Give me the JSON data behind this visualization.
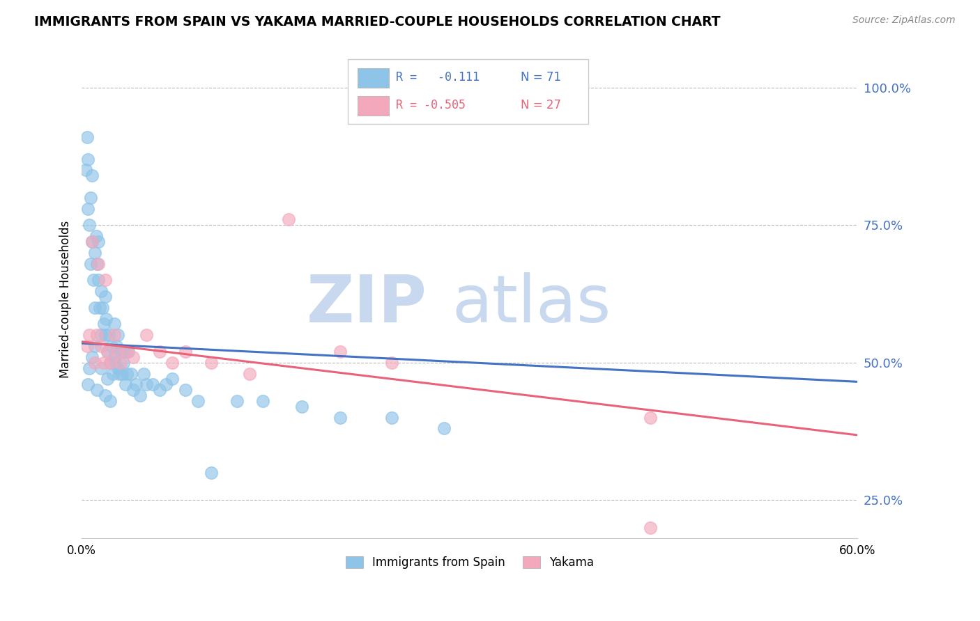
{
  "title": "IMMIGRANTS FROM SPAIN VS YAKAMA MARRIED-COUPLE HOUSEHOLDS CORRELATION CHART",
  "source": "Source: ZipAtlas.com",
  "ylabel": "Married-couple Households",
  "ytick_labels": [
    "25.0%",
    "50.0%",
    "75.0%",
    "100.0%"
  ],
  "ytick_values": [
    0.25,
    0.5,
    0.75,
    1.0
  ],
  "xlim": [
    0.0,
    0.6
  ],
  "ylim": [
    0.18,
    1.05
  ],
  "legend_label1": "Immigrants from Spain",
  "legend_label2": "Yakama",
  "blue_color": "#8ec4e8",
  "pink_color": "#f4a8bc",
  "blue_line_color": "#4472c4",
  "pink_line_color": "#e8637a",
  "blue_dots_x": [
    0.003,
    0.004,
    0.005,
    0.005,
    0.006,
    0.007,
    0.007,
    0.008,
    0.008,
    0.009,
    0.01,
    0.01,
    0.011,
    0.012,
    0.013,
    0.013,
    0.014,
    0.015,
    0.015,
    0.016,
    0.017,
    0.018,
    0.018,
    0.019,
    0.02,
    0.021,
    0.022,
    0.023,
    0.024,
    0.025,
    0.025,
    0.026,
    0.027,
    0.028,
    0.028,
    0.029,
    0.03,
    0.031,
    0.032,
    0.033,
    0.034,
    0.035,
    0.036,
    0.038,
    0.04,
    0.042,
    0.045,
    0.048,
    0.05,
    0.055,
    0.06,
    0.065,
    0.07,
    0.08,
    0.09,
    0.1,
    0.12,
    0.14,
    0.17,
    0.2,
    0.24,
    0.28,
    0.005,
    0.006,
    0.008,
    0.01,
    0.012,
    0.015,
    0.018,
    0.02,
    0.022
  ],
  "blue_dots_y": [
    0.85,
    0.91,
    0.78,
    0.87,
    0.75,
    0.8,
    0.68,
    0.72,
    0.84,
    0.65,
    0.7,
    0.6,
    0.73,
    0.68,
    0.65,
    0.72,
    0.6,
    0.63,
    0.55,
    0.6,
    0.57,
    0.55,
    0.62,
    0.58,
    0.52,
    0.55,
    0.5,
    0.53,
    0.48,
    0.51,
    0.57,
    0.5,
    0.53,
    0.49,
    0.55,
    0.48,
    0.52,
    0.48,
    0.5,
    0.52,
    0.46,
    0.48,
    0.52,
    0.48,
    0.45,
    0.46,
    0.44,
    0.48,
    0.46,
    0.46,
    0.45,
    0.46,
    0.47,
    0.45,
    0.43,
    0.3,
    0.43,
    0.43,
    0.42,
    0.4,
    0.4,
    0.38,
    0.46,
    0.49,
    0.51,
    0.53,
    0.45,
    0.49,
    0.44,
    0.47,
    0.43
  ],
  "pink_dots_x": [
    0.004,
    0.006,
    0.008,
    0.01,
    0.012,
    0.013,
    0.015,
    0.017,
    0.018,
    0.02,
    0.022,
    0.025,
    0.028,
    0.03,
    0.035,
    0.04,
    0.05,
    0.06,
    0.07,
    0.08,
    0.1,
    0.13,
    0.16,
    0.2,
    0.24,
    0.44,
    0.44
  ],
  "pink_dots_y": [
    0.53,
    0.55,
    0.72,
    0.5,
    0.55,
    0.68,
    0.53,
    0.5,
    0.65,
    0.52,
    0.5,
    0.55,
    0.52,
    0.5,
    0.52,
    0.51,
    0.55,
    0.52,
    0.5,
    0.52,
    0.5,
    0.48,
    0.76,
    0.52,
    0.5,
    0.4,
    0.2
  ],
  "blue_line_start_y": 0.535,
  "blue_line_end_y": 0.465,
  "pink_line_start_y": 0.538,
  "pink_line_end_y": 0.368
}
